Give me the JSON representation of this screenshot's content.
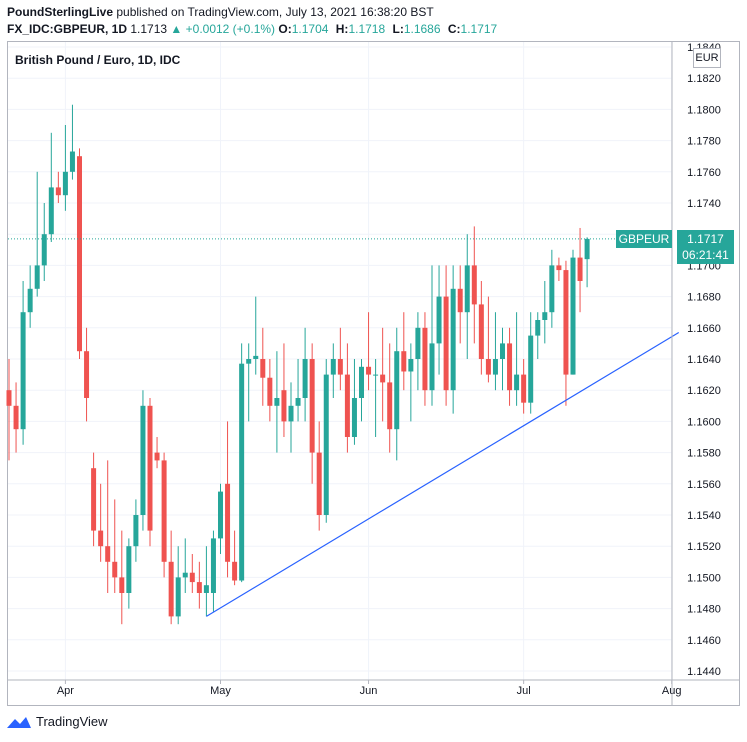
{
  "header": {
    "publisher": "PoundSterlingLive",
    "published_text": " published on TradingView.com, July 13, 2021 16:38:20 BST",
    "symbol": "FX_IDC:GBPEUR, 1D",
    "last": "1.1713",
    "change": "▲ +0.0012 (+0.1%)",
    "o_label": "O:",
    "o_value": "1.1704",
    "h_label": "H:",
    "h_value": "1.1718",
    "l_label": "L:",
    "l_value": "1.1686",
    "c_label": "C:",
    "c_value": "1.1717"
  },
  "series_title": "British Pound / Euro, 1D, IDC",
  "currency": "EUR",
  "tag_symbol": "GBPEUR",
  "tag_price": "1.1717",
  "tag_countdown": "06:21:41",
  "footer_brand": "TradingView",
  "colors": {
    "up": "#26a69a",
    "down": "#ef5350",
    "trendline": "#2962ff",
    "grid": "#f0f3fa"
  },
  "chart_data": {
    "type": "candlestick",
    "y_axis": {
      "min": 1.144,
      "max": 1.184,
      "ticks": [
        "1.1440",
        "1.1460",
        "1.1480",
        "1.1500",
        "1.1520",
        "1.1540",
        "1.1560",
        "1.1580",
        "1.1600",
        "1.1620",
        "1.1640",
        "1.1660",
        "1.1680",
        "1.1700",
        "1.1720",
        "1.1740",
        "1.1760",
        "1.1780",
        "1.1800",
        "1.1820",
        "1.1840"
      ]
    },
    "x_axis": {
      "labels": [
        "Apr",
        "May",
        "Jun",
        "Jul",
        "Aug"
      ],
      "label_index": [
        8,
        30,
        51,
        73,
        94
      ]
    },
    "grid": true,
    "candles": [
      {
        "o": 1.162,
        "h": 1.164,
        "l": 1.1575,
        "c": 1.161
      },
      {
        "o": 1.161,
        "h": 1.1625,
        "l": 1.158,
        "c": 1.1595
      },
      {
        "o": 1.1595,
        "h": 1.169,
        "l": 1.1585,
        "c": 1.167
      },
      {
        "o": 1.167,
        "h": 1.17,
        "l": 1.166,
        "c": 1.1685
      },
      {
        "o": 1.1685,
        "h": 1.176,
        "l": 1.168,
        "c": 1.17
      },
      {
        "o": 1.17,
        "h": 1.174,
        "l": 1.169,
        "c": 1.172
      },
      {
        "o": 1.172,
        "h": 1.1785,
        "l": 1.1715,
        "c": 1.175
      },
      {
        "o": 1.175,
        "h": 1.176,
        "l": 1.174,
        "c": 1.1745
      },
      {
        "o": 1.1745,
        "h": 1.179,
        "l": 1.1735,
        "c": 1.176
      },
      {
        "o": 1.176,
        "h": 1.1803,
        "l": 1.1755,
        "c": 1.1773
      },
      {
        "o": 1.177,
        "h": 1.1775,
        "l": 1.164,
        "c": 1.1645
      },
      {
        "o": 1.1645,
        "h": 1.166,
        "l": 1.16,
        "c": 1.1615
      },
      {
        "o": 1.157,
        "h": 1.158,
        "l": 1.152,
        "c": 1.153
      },
      {
        "o": 1.153,
        "h": 1.156,
        "l": 1.151,
        "c": 1.152
      },
      {
        "o": 1.152,
        "h": 1.1575,
        "l": 1.149,
        "c": 1.151
      },
      {
        "o": 1.151,
        "h": 1.155,
        "l": 1.149,
        "c": 1.15
      },
      {
        "o": 1.15,
        "h": 1.153,
        "l": 1.147,
        "c": 1.149
      },
      {
        "o": 1.149,
        "h": 1.1525,
        "l": 1.148,
        "c": 1.152
      },
      {
        "o": 1.152,
        "h": 1.155,
        "l": 1.151,
        "c": 1.154
      },
      {
        "o": 1.154,
        "h": 1.162,
        "l": 1.153,
        "c": 1.161
      },
      {
        "o": 1.161,
        "h": 1.1615,
        "l": 1.152,
        "c": 1.153
      },
      {
        "o": 1.158,
        "h": 1.159,
        "l": 1.157,
        "c": 1.1575
      },
      {
        "o": 1.1575,
        "h": 1.158,
        "l": 1.15,
        "c": 1.151
      },
      {
        "o": 1.151,
        "h": 1.153,
        "l": 1.147,
        "c": 1.1475
      },
      {
        "o": 1.1475,
        "h": 1.152,
        "l": 1.147,
        "c": 1.15
      },
      {
        "o": 1.15,
        "h": 1.1525,
        "l": 1.149,
        "c": 1.1503
      },
      {
        "o": 1.1503,
        "h": 1.1515,
        "l": 1.149,
        "c": 1.1497
      },
      {
        "o": 1.1497,
        "h": 1.151,
        "l": 1.148,
        "c": 1.149
      },
      {
        "o": 1.149,
        "h": 1.152,
        "l": 1.1475,
        "c": 1.1495
      },
      {
        "o": 1.149,
        "h": 1.153,
        "l": 1.1478,
        "c": 1.1525
      },
      {
        "o": 1.1525,
        "h": 1.156,
        "l": 1.1515,
        "c": 1.1555
      },
      {
        "o": 1.156,
        "h": 1.16,
        "l": 1.15,
        "c": 1.151
      },
      {
        "o": 1.151,
        "h": 1.153,
        "l": 1.1495,
        "c": 1.1498
      },
      {
        "o": 1.1498,
        "h": 1.165,
        "l": 1.1497,
        "c": 1.1637
      },
      {
        "o": 1.1637,
        "h": 1.165,
        "l": 1.16,
        "c": 1.164
      },
      {
        "o": 1.164,
        "h": 1.168,
        "l": 1.163,
        "c": 1.1642
      },
      {
        "o": 1.164,
        "h": 1.166,
        "l": 1.161,
        "c": 1.1628
      },
      {
        "o": 1.1628,
        "h": 1.164,
        "l": 1.16,
        "c": 1.161
      },
      {
        "o": 1.161,
        "h": 1.1645,
        "l": 1.158,
        "c": 1.1615
      },
      {
        "o": 1.162,
        "h": 1.165,
        "l": 1.159,
        "c": 1.16
      },
      {
        "o": 1.16,
        "h": 1.1625,
        "l": 1.158,
        "c": 1.161
      },
      {
        "o": 1.161,
        "h": 1.164,
        "l": 1.16,
        "c": 1.1615
      },
      {
        "o": 1.1615,
        "h": 1.166,
        "l": 1.16,
        "c": 1.164
      },
      {
        "o": 1.164,
        "h": 1.165,
        "l": 1.156,
        "c": 1.158
      },
      {
        "o": 1.158,
        "h": 1.16,
        "l": 1.153,
        "c": 1.154
      },
      {
        "o": 1.154,
        "h": 1.164,
        "l": 1.1535,
        "c": 1.163
      },
      {
        "o": 1.163,
        "h": 1.165,
        "l": 1.1615,
        "c": 1.164
      },
      {
        "o": 1.164,
        "h": 1.166,
        "l": 1.162,
        "c": 1.163
      },
      {
        "o": 1.163,
        "h": 1.165,
        "l": 1.158,
        "c": 1.159
      },
      {
        "o": 1.159,
        "h": 1.164,
        "l": 1.1585,
        "c": 1.1615
      },
      {
        "o": 1.1615,
        "h": 1.164,
        "l": 1.16,
        "c": 1.1635
      },
      {
        "o": 1.1635,
        "h": 1.167,
        "l": 1.162,
        "c": 1.163
      },
      {
        "o": 1.163,
        "h": 1.164,
        "l": 1.159,
        "c": 1.163
      },
      {
        "o": 1.163,
        "h": 1.166,
        "l": 1.16,
        "c": 1.1625
      },
      {
        "o": 1.1625,
        "h": 1.165,
        "l": 1.158,
        "c": 1.1595
      },
      {
        "o": 1.1595,
        "h": 1.166,
        "l": 1.1575,
        "c": 1.1645
      },
      {
        "o": 1.1645,
        "h": 1.167,
        "l": 1.162,
        "c": 1.1632
      },
      {
        "o": 1.1632,
        "h": 1.165,
        "l": 1.16,
        "c": 1.164
      },
      {
        "o": 1.164,
        "h": 1.167,
        "l": 1.162,
        "c": 1.166
      },
      {
        "o": 1.166,
        "h": 1.167,
        "l": 1.161,
        "c": 1.162
      },
      {
        "o": 1.162,
        "h": 1.17,
        "l": 1.161,
        "c": 1.165
      },
      {
        "o": 1.165,
        "h": 1.17,
        "l": 1.163,
        "c": 1.168
      },
      {
        "o": 1.168,
        "h": 1.17,
        "l": 1.161,
        "c": 1.162
      },
      {
        "o": 1.162,
        "h": 1.17,
        "l": 1.1605,
        "c": 1.1685
      },
      {
        "o": 1.1685,
        "h": 1.17,
        "l": 1.165,
        "c": 1.167
      },
      {
        "o": 1.167,
        "h": 1.172,
        "l": 1.164,
        "c": 1.17
      },
      {
        "o": 1.17,
        "h": 1.1725,
        "l": 1.165,
        "c": 1.1675
      },
      {
        "o": 1.1675,
        "h": 1.169,
        "l": 1.163,
        "c": 1.164
      },
      {
        "o": 1.164,
        "h": 1.168,
        "l": 1.1625,
        "c": 1.163
      },
      {
        "o": 1.163,
        "h": 1.167,
        "l": 1.162,
        "c": 1.164
      },
      {
        "o": 1.164,
        "h": 1.166,
        "l": 1.162,
        "c": 1.165
      },
      {
        "o": 1.165,
        "h": 1.166,
        "l": 1.161,
        "c": 1.162
      },
      {
        "o": 1.162,
        "h": 1.167,
        "l": 1.161,
        "c": 1.163
      },
      {
        "o": 1.163,
        "h": 1.164,
        "l": 1.1605,
        "c": 1.1612
      },
      {
        "o": 1.1612,
        "h": 1.167,
        "l": 1.1605,
        "c": 1.1655
      },
      {
        "o": 1.1655,
        "h": 1.167,
        "l": 1.164,
        "c": 1.1665
      },
      {
        "o": 1.1665,
        "h": 1.169,
        "l": 1.165,
        "c": 1.167
      },
      {
        "o": 1.167,
        "h": 1.171,
        "l": 1.166,
        "c": 1.17
      },
      {
        "o": 1.17,
        "h": 1.1705,
        "l": 1.169,
        "c": 1.1697
      },
      {
        "o": 1.1697,
        "h": 1.1703,
        "l": 1.161,
        "c": 1.163
      },
      {
        "o": 1.163,
        "h": 1.171,
        "l": 1.163,
        "c": 1.1705
      },
      {
        "o": 1.1705,
        "h": 1.1724,
        "l": 1.167,
        "c": 1.169
      },
      {
        "o": 1.1704,
        "h": 1.1718,
        "l": 1.1686,
        "c": 1.1717
      }
    ],
    "trendline": {
      "from": {
        "index": 28,
        "price": 1.1475
      },
      "to": {
        "index": 95,
        "price": 1.1657
      }
    }
  }
}
